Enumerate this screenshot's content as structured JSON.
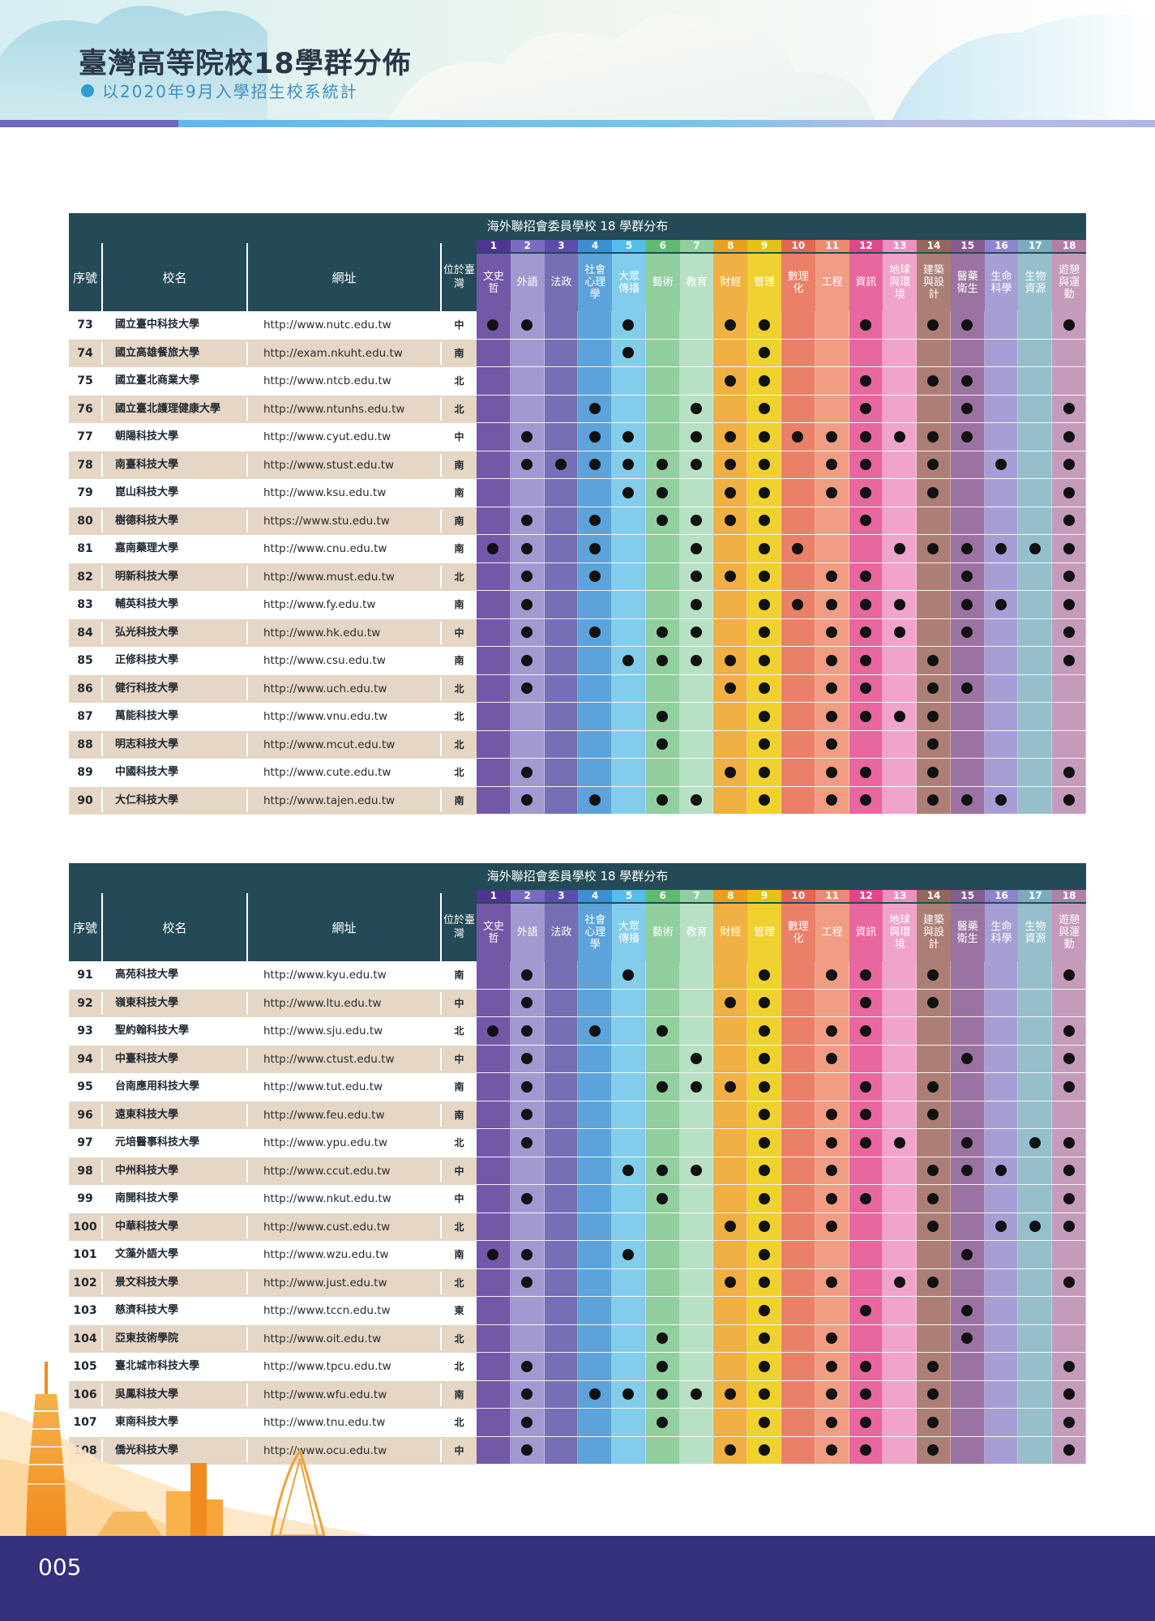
{
  "header": {
    "title": "臺灣高等院校18學群分佈",
    "subtitle": "以2020年9月入學招生校系統計"
  },
  "table_caption": "海外聯招會委員學校 18 學群分布",
  "columns": {
    "seq": "序號",
    "school": "校名",
    "url": "網址",
    "location": "位於臺灣"
  },
  "groups": [
    {
      "num": "1",
      "name": "文史哲",
      "color": "#7358a7",
      "head": "#4e3590"
    },
    {
      "num": "2",
      "name": "外語",
      "color": "#a19ad0",
      "head": "#7a6cc0"
    },
    {
      "num": "3",
      "name": "法政",
      "color": "#766fb5",
      "head": "#5a4fa8"
    },
    {
      "num": "4",
      "name": "社會心理學",
      "color": "#5ba3da",
      "head": "#3d8fd3"
    },
    {
      "num": "5",
      "name": "大眾傳播",
      "color": "#83cdec",
      "head": "#55bde9"
    },
    {
      "num": "6",
      "name": "藝術",
      "color": "#91cf9e",
      "head": "#5fba72"
    },
    {
      "num": "7",
      "name": "教育",
      "color": "#b8e0c5",
      "head": "#8fcfa3"
    },
    {
      "num": "8",
      "name": "財經",
      "color": "#f0b043",
      "head": "#ec9f1c"
    },
    {
      "num": "9",
      "name": "管理",
      "color": "#efd22f",
      "head": "#e6c219"
    },
    {
      "num": "10",
      "name": "數理化",
      "color": "#eb8069",
      "head": "#e5664a"
    },
    {
      "num": "11",
      "name": "工程",
      "color": "#f09d84",
      "head": "#ee8a6e"
    },
    {
      "num": "12",
      "name": "資訊",
      "color": "#e8679f",
      "head": "#e2468a"
    },
    {
      "num": "13",
      "name": "地球與環境",
      "color": "#f1a4cb",
      "head": "#ee8fc0"
    },
    {
      "num": "14",
      "name": "建築與設計",
      "color": "#ad7e76",
      "head": "#97655c"
    },
    {
      "num": "15",
      "name": "醫藥衛生",
      "color": "#9b73a2",
      "head": "#875c90"
    },
    {
      "num": "16",
      "name": "生命科學",
      "color": "#a69fd6",
      "head": "#8e84cd"
    },
    {
      "num": "17",
      "name": "生物資源",
      "color": "#96bfcb",
      "head": "#79adbd"
    },
    {
      "num": "18",
      "name": "遊憩與運動",
      "color": "#c59bbc",
      "head": "#b37fa7"
    }
  ],
  "tables": [
    {
      "rows": [
        {
          "seq": "73",
          "name": "國立臺中科技大學",
          "url": "http://www.nutc.edu.tw",
          "loc": "中",
          "g": [
            1,
            1,
            0,
            0,
            1,
            0,
            0,
            1,
            1,
            0,
            0,
            1,
            0,
            1,
            1,
            0,
            0,
            1
          ]
        },
        {
          "seq": "74",
          "name": "國立高雄餐旅大學",
          "url": "http://exam.nkuht.edu.tw",
          "loc": "南",
          "g": [
            0,
            0,
            0,
            0,
            1,
            0,
            0,
            0,
            1,
            0,
            0,
            0,
            0,
            0,
            0,
            0,
            0,
            0
          ]
        },
        {
          "seq": "75",
          "name": "國立臺北商業大學",
          "url": "http://www.ntcb.edu.tw",
          "loc": "北",
          "g": [
            0,
            0,
            0,
            0,
            0,
            0,
            0,
            1,
            1,
            0,
            0,
            1,
            0,
            1,
            1,
            0,
            0,
            0
          ]
        },
        {
          "seq": "76",
          "name": "國立臺北護理健康大學",
          "url": "http://www.ntunhs.edu.tw",
          "loc": "北",
          "g": [
            0,
            0,
            0,
            1,
            0,
            0,
            1,
            0,
            1,
            0,
            0,
            1,
            0,
            0,
            1,
            0,
            0,
            1
          ]
        },
        {
          "seq": "77",
          "name": "朝陽科技大學",
          "url": "http://www.cyut.edu.tw",
          "loc": "中",
          "g": [
            0,
            1,
            0,
            1,
            1,
            0,
            1,
            1,
            1,
            1,
            1,
            1,
            1,
            1,
            1,
            0,
            0,
            1
          ]
        },
        {
          "seq": "78",
          "name": "南臺科技大學",
          "url": "http://www.stust.edu.tw",
          "loc": "南",
          "g": [
            0,
            1,
            1,
            1,
            1,
            1,
            1,
            1,
            1,
            0,
            1,
            1,
            0,
            1,
            0,
            1,
            0,
            1
          ]
        },
        {
          "seq": "79",
          "name": "崑山科技大學",
          "url": "http://www.ksu.edu.tw",
          "loc": "南",
          "g": [
            0,
            0,
            0,
            0,
            1,
            1,
            0,
            1,
            1,
            0,
            1,
            1,
            0,
            1,
            0,
            0,
            0,
            1
          ]
        },
        {
          "seq": "80",
          "name": "樹德科技大學",
          "url": "https://www.stu.edu.tw",
          "loc": "南",
          "g": [
            0,
            1,
            0,
            1,
            0,
            1,
            1,
            1,
            1,
            0,
            0,
            1,
            0,
            0,
            0,
            0,
            0,
            1
          ]
        },
        {
          "seq": "81",
          "name": "嘉南藥理大學",
          "url": "http://www.cnu.edu.tw",
          "loc": "南",
          "g": [
            1,
            1,
            0,
            1,
            0,
            0,
            1,
            0,
            1,
            1,
            0,
            0,
            1,
            1,
            1,
            1,
            1,
            1
          ]
        },
        {
          "seq": "82",
          "name": "明新科技大學",
          "url": "http://www.must.edu.tw",
          "loc": "北",
          "g": [
            0,
            1,
            0,
            1,
            0,
            0,
            1,
            1,
            1,
            0,
            1,
            1,
            0,
            0,
            1,
            0,
            0,
            1
          ]
        },
        {
          "seq": "83",
          "name": "輔英科技大學",
          "url": "http://www.fy.edu.tw",
          "loc": "南",
          "g": [
            0,
            1,
            0,
            0,
            0,
            0,
            1,
            0,
            1,
            1,
            1,
            1,
            1,
            0,
            1,
            1,
            0,
            1
          ]
        },
        {
          "seq": "84",
          "name": "弘光科技大學",
          "url": "http://www.hk.edu.tw",
          "loc": "中",
          "g": [
            0,
            1,
            0,
            1,
            0,
            1,
            1,
            0,
            1,
            0,
            1,
            1,
            1,
            0,
            1,
            0,
            0,
            1
          ]
        },
        {
          "seq": "85",
          "name": "正修科技大學",
          "url": "http://www.csu.edu.tw",
          "loc": "南",
          "g": [
            0,
            1,
            0,
            0,
            1,
            1,
            1,
            1,
            1,
            0,
            1,
            1,
            0,
            1,
            0,
            0,
            0,
            1
          ]
        },
        {
          "seq": "86",
          "name": "健行科技大學",
          "url": "http://www.uch.edu.tw",
          "loc": "北",
          "g": [
            0,
            1,
            0,
            0,
            0,
            0,
            0,
            1,
            1,
            0,
            1,
            1,
            0,
            1,
            1,
            0,
            0,
            0
          ]
        },
        {
          "seq": "87",
          "name": "萬能科技大學",
          "url": "http://www.vnu.edu.tw",
          "loc": "北",
          "g": [
            0,
            0,
            0,
            0,
            0,
            1,
            0,
            0,
            1,
            0,
            1,
            1,
            1,
            1,
            0,
            0,
            0,
            0
          ]
        },
        {
          "seq": "88",
          "name": "明志科技大學",
          "url": "http://www.mcut.edu.tw",
          "loc": "北",
          "g": [
            0,
            0,
            0,
            0,
            0,
            1,
            0,
            0,
            1,
            0,
            1,
            0,
            0,
            1,
            0,
            0,
            0,
            0
          ]
        },
        {
          "seq": "89",
          "name": "中國科技大學",
          "url": "http://www.cute.edu.tw",
          "loc": "北",
          "g": [
            0,
            1,
            0,
            0,
            0,
            0,
            0,
            1,
            1,
            0,
            1,
            1,
            0,
            1,
            0,
            0,
            0,
            1
          ]
        },
        {
          "seq": "90",
          "name": "大仁科技大學",
          "url": "http://www.tajen.edu.tw",
          "loc": "南",
          "g": [
            0,
            1,
            0,
            1,
            0,
            1,
            1,
            0,
            1,
            0,
            1,
            1,
            0,
            1,
            1,
            1,
            0,
            1
          ]
        }
      ]
    },
    {
      "rows": [
        {
          "seq": "91",
          "name": "高苑科技大學",
          "url": "http://www.kyu.edu.tw",
          "loc": "南",
          "g": [
            0,
            1,
            0,
            0,
            1,
            0,
            0,
            0,
            1,
            0,
            1,
            1,
            0,
            1,
            0,
            0,
            0,
            1
          ]
        },
        {
          "seq": "92",
          "name": "嶺東科技大學",
          "url": "http://www.ltu.edu.tw",
          "loc": "中",
          "g": [
            0,
            1,
            0,
            0,
            0,
            0,
            0,
            1,
            1,
            0,
            0,
            1,
            0,
            1,
            0,
            0,
            0,
            0
          ]
        },
        {
          "seq": "93",
          "name": "聖約翰科技大學",
          "url": "http://www.sju.edu.tw",
          "loc": "北",
          "g": [
            1,
            1,
            0,
            1,
            0,
            1,
            0,
            0,
            1,
            0,
            1,
            1,
            0,
            0,
            0,
            0,
            0,
            1
          ]
        },
        {
          "seq": "94",
          "name": "中臺科技大學",
          "url": "http://www.ctust.edu.tw",
          "loc": "中",
          "g": [
            0,
            1,
            0,
            0,
            0,
            0,
            1,
            0,
            1,
            0,
            1,
            0,
            0,
            0,
            1,
            0,
            0,
            1
          ]
        },
        {
          "seq": "95",
          "name": "台南應用科技大學",
          "url": "http://www.tut.edu.tw",
          "loc": "南",
          "g": [
            0,
            1,
            0,
            0,
            0,
            1,
            1,
            1,
            1,
            0,
            0,
            1,
            0,
            1,
            0,
            0,
            0,
            1
          ]
        },
        {
          "seq": "96",
          "name": "遠東科技大學",
          "url": "http://www.feu.edu.tw",
          "loc": "南",
          "g": [
            0,
            1,
            0,
            0,
            0,
            0,
            0,
            0,
            1,
            0,
            1,
            1,
            0,
            1,
            0,
            0,
            0,
            0
          ]
        },
        {
          "seq": "97",
          "name": "元培醫事科技大學",
          "url": "http://www.ypu.edu.tw",
          "loc": "北",
          "g": [
            0,
            1,
            0,
            0,
            0,
            0,
            0,
            0,
            1,
            0,
            1,
            1,
            1,
            0,
            1,
            0,
            1,
            1
          ]
        },
        {
          "seq": "98",
          "name": "中州科技大學",
          "url": "http://www.ccut.edu.tw",
          "loc": "中",
          "g": [
            0,
            0,
            0,
            0,
            1,
            1,
            1,
            0,
            1,
            0,
            1,
            0,
            0,
            1,
            1,
            1,
            0,
            1
          ]
        },
        {
          "seq": "99",
          "name": "南開科技大學",
          "url": "http://www.nkut.edu.tw",
          "loc": "中",
          "g": [
            0,
            1,
            0,
            0,
            0,
            1,
            0,
            0,
            1,
            0,
            1,
            1,
            0,
            1,
            0,
            0,
            0,
            1
          ]
        },
        {
          "seq": "100",
          "name": "中華科技大學",
          "url": "http://www.cust.edu.tw",
          "loc": "北",
          "g": [
            0,
            0,
            0,
            0,
            0,
            0,
            0,
            1,
            1,
            0,
            1,
            0,
            0,
            1,
            0,
            1,
            1,
            1
          ]
        },
        {
          "seq": "101",
          "name": "文藻外語大學",
          "url": "http://www.wzu.edu.tw",
          "loc": "南",
          "g": [
            1,
            1,
            0,
            0,
            1,
            0,
            0,
            0,
            1,
            0,
            0,
            0,
            0,
            0,
            1,
            0,
            0,
            0
          ]
        },
        {
          "seq": "102",
          "name": "景文科技大學",
          "url": "http://www.just.edu.tw",
          "loc": "北",
          "g": [
            0,
            1,
            0,
            0,
            0,
            0,
            0,
            1,
            1,
            0,
            1,
            0,
            1,
            1,
            0,
            0,
            0,
            1
          ]
        },
        {
          "seq": "103",
          "name": "慈濟科技大學",
          "url": "http://www.tccn.edu.tw",
          "loc": "東",
          "g": [
            0,
            0,
            0,
            0,
            0,
            0,
            0,
            0,
            1,
            0,
            0,
            1,
            0,
            0,
            1,
            0,
            0,
            0
          ]
        },
        {
          "seq": "104",
          "name": "亞東技術學院",
          "url": "http://www.oit.edu.tw",
          "loc": "北",
          "g": [
            0,
            0,
            0,
            0,
            0,
            1,
            0,
            0,
            1,
            0,
            1,
            0,
            0,
            0,
            1,
            0,
            0,
            0
          ]
        },
        {
          "seq": "105",
          "name": "臺北城市科技大學",
          "url": "http://www.tpcu.edu.tw",
          "loc": "北",
          "g": [
            0,
            1,
            0,
            0,
            0,
            1,
            0,
            0,
            1,
            0,
            1,
            1,
            0,
            1,
            0,
            0,
            0,
            1
          ]
        },
        {
          "seq": "106",
          "name": "吳鳳科技大學",
          "url": "http://www.wfu.edu.tw",
          "loc": "南",
          "g": [
            0,
            1,
            0,
            1,
            1,
            1,
            1,
            1,
            1,
            0,
            1,
            1,
            0,
            1,
            0,
            0,
            0,
            1
          ]
        },
        {
          "seq": "107",
          "name": "東南科技大學",
          "url": "http://www.tnu.edu.tw",
          "loc": "北",
          "g": [
            0,
            1,
            0,
            0,
            0,
            1,
            0,
            0,
            1,
            0,
            1,
            1,
            0,
            1,
            0,
            0,
            0,
            1
          ]
        },
        {
          "seq": "108",
          "name": "僑光科技大學",
          "url": "http://www.ocu.edu.tw",
          "loc": "中",
          "g": [
            0,
            1,
            0,
            0,
            0,
            0,
            0,
            1,
            1,
            0,
            1,
            1,
            0,
            1,
            0,
            0,
            0,
            1
          ]
        }
      ]
    }
  ],
  "footer": {
    "page_number": "005"
  }
}
